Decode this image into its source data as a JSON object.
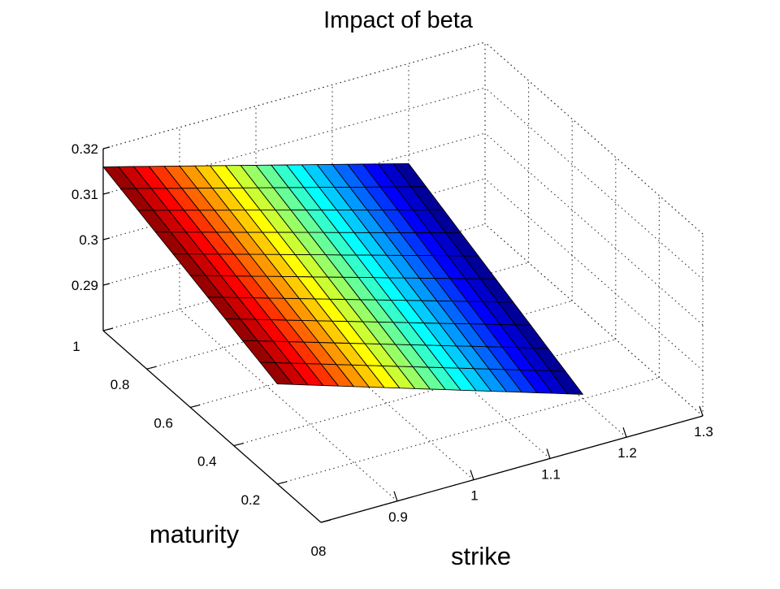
{
  "chart_data": {
    "type": "surface",
    "title": "Impact of beta",
    "xlabel": "strike",
    "ylabel": "maturity",
    "zlabel": "",
    "x_ticks": [
      "0.9",
      "1",
      "1.1",
      "1.2",
      "1.3"
    ],
    "x_tick_values": [
      0.9,
      1.0,
      1.1,
      1.2,
      1.3
    ],
    "y_ticks": [
      "0",
      "0.2",
      "0.4",
      "0.6",
      "0.8",
      "1"
    ],
    "y_tick_values": [
      0,
      0.2,
      0.4,
      0.6,
      0.8,
      1.0
    ],
    "y_ticks_overlap_label": "08",
    "z_ticks": [
      "0.29",
      "0.3",
      "0.31",
      "0.32"
    ],
    "z_tick_values": [
      0.29,
      0.3,
      0.31,
      0.32
    ],
    "xlim": [
      0.8,
      1.3
    ],
    "ylim": [
      0,
      1
    ],
    "zlim": [
      0.28,
      0.32
    ],
    "grid": true,
    "colormap": "jet",
    "surface": {
      "x_range": [
        0.8,
        1.2
      ],
      "y_range": [
        0.2,
        1.0
      ],
      "x_count": 21,
      "y_count": 11,
      "corner_values": {
        "x0.8_y1.0": 0.316,
        "x1.2_y1.0": 0.298,
        "x0.8_y0.2": 0.302,
        "x1.2_y0.2": 0.281
      }
    }
  }
}
